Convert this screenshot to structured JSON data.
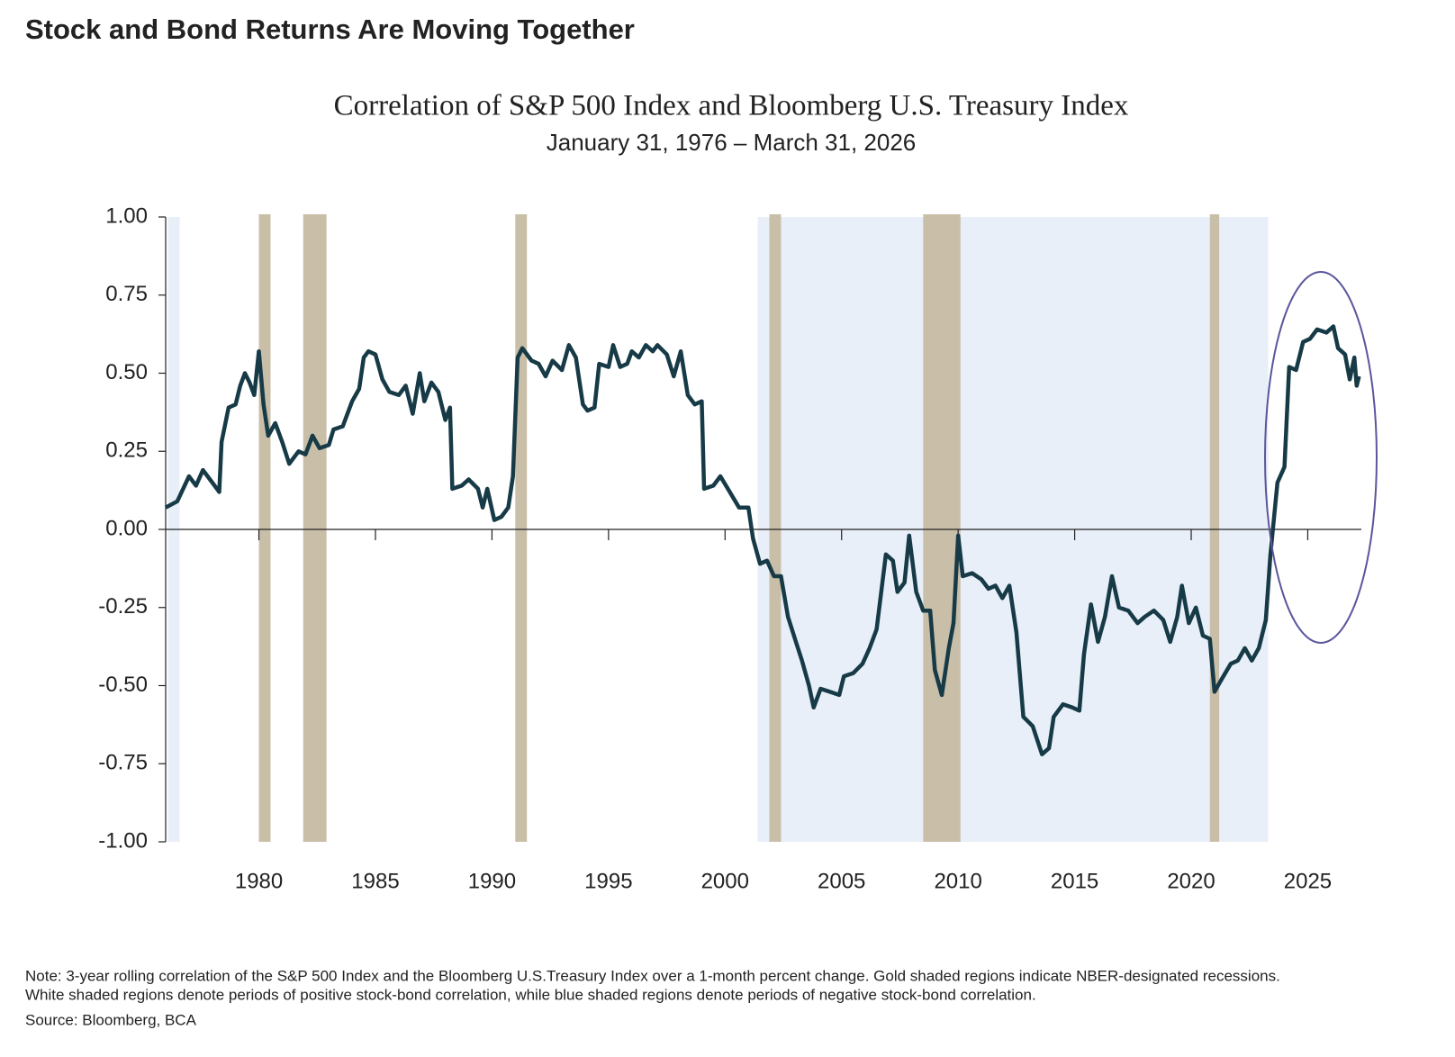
{
  "chart_data": {
    "type": "line",
    "title": "Stock and Bond Returns Are Moving Together",
    "chart_title": "Correlation of S&P 500 Index and Bloomberg U.S. Treasury Index",
    "subtitle": "January 31, 1976 – March 31, 2026",
    "note": [
      "Note: 3-year rolling  correlation of the S&P 500 Index and the Bloomberg U.S.Treasury Index over a 1-month percent change. Gold shaded regions indicate NBER-designated recessions.",
      "White shaded regions denote periods of positive stock-bond correlation, while blue shaded regions denote periods of negative stock-bond correlation."
    ],
    "source": "Source: Bloomberg, BCA",
    "xlim": [
      1976,
      2027.3
    ],
    "xticks": [
      1980,
      1985,
      1990,
      1995,
      2000,
      2005,
      2010,
      2015,
      2020,
      2025
    ],
    "ylim": [
      -1,
      1
    ],
    "yticks": [
      {
        "value": -1,
        "label": "-1.00"
      },
      -0.75,
      {
        "value": -0.5,
        "label": "-0.50"
      },
      -0.25,
      {
        "value": 0,
        "label": "0.00"
      },
      0.25,
      {
        "value": 0.5,
        "label": "0.50"
      },
      0.75,
      {
        "value": 1,
        "label": "1.00"
      }
    ],
    "color": "#173a47",
    "recession_color": "#c9bea8",
    "negative_color": "#e8eff8",
    "recessions": [
      [
        1980.0,
        1980.5
      ],
      [
        1981.9,
        1982.9
      ],
      [
        1991.0,
        1991.5
      ],
      [
        2001.9,
        2002.4
      ],
      [
        2008.5,
        2010.1
      ],
      [
        2020.8,
        2021.2
      ]
    ],
    "negative_periods": [
      [
        1976.1,
        1976.6
      ],
      [
        2001.4,
        2023.3
      ]
    ],
    "x": [
      1976.0,
      1976.5,
      1977.0,
      1977.3,
      1977.6,
      1978.0,
      1978.3,
      1978.4,
      1978.7,
      1979.0,
      1979.2,
      1979.4,
      1979.6,
      1979.8,
      1980.0,
      1980.2,
      1980.4,
      1980.7,
      1981.0,
      1981.3,
      1981.7,
      1982.0,
      1982.3,
      1982.6,
      1983.0,
      1983.2,
      1983.6,
      1984.0,
      1984.3,
      1984.5,
      1984.7,
      1985.0,
      1985.3,
      1985.6,
      1986.0,
      1986.3,
      1986.6,
      1986.9,
      1987.1,
      1987.4,
      1987.7,
      1988.0,
      1988.2,
      1988.3,
      1988.7,
      1989.0,
      1989.4,
      1989.6,
      1989.8,
      1990.1,
      1990.4,
      1990.7,
      1990.9,
      1991.1,
      1991.3,
      1991.7,
      1992.0,
      1992.3,
      1992.6,
      1993.0,
      1993.3,
      1993.6,
      1993.9,
      1994.1,
      1994.4,
      1994.6,
      1995.0,
      1995.2,
      1995.5,
      1995.8,
      1996.0,
      1996.3,
      1996.6,
      1996.9,
      1997.1,
      1997.5,
      1997.8,
      1998.1,
      1998.4,
      1998.7,
      1999.0,
      1999.1,
      1999.5,
      1999.8,
      2000.2,
      2000.6,
      2001.0,
      2001.2,
      2001.5,
      2001.8,
      2002.1,
      2002.4,
      2002.7,
      2003.0,
      2003.3,
      2003.6,
      2003.8,
      2004.1,
      2004.5,
      2004.9,
      2005.1,
      2005.5,
      2005.9,
      2006.2,
      2006.5,
      2006.9,
      2007.2,
      2007.4,
      2007.7,
      2007.9,
      2008.2,
      2008.5,
      2008.8,
      2009.0,
      2009.3,
      2009.6,
      2009.8,
      2010.0,
      2010.2,
      2010.6,
      2011.0,
      2011.3,
      2011.6,
      2011.9,
      2012.2,
      2012.5,
      2012.8,
      2013.2,
      2013.6,
      2013.9,
      2014.1,
      2014.5,
      2014.9,
      2015.2,
      2015.4,
      2015.7,
      2016.0,
      2016.3,
      2016.6,
      2016.9,
      2017.3,
      2017.7,
      2018.0,
      2018.4,
      2018.8,
      2019.1,
      2019.4,
      2019.6,
      2019.9,
      2020.2,
      2020.5,
      2020.8,
      2021.0,
      2021.3,
      2021.7,
      2022.0,
      2022.3,
      2022.6,
      2022.9,
      2023.2,
      2023.4,
      2023.7,
      2024.0,
      2024.2,
      2024.5,
      2024.8,
      2025.1,
      2025.4,
      2025.8,
      2026.1,
      2026.3,
      2026.6,
      2026.8,
      2027.0,
      2027.1,
      2027.2
    ],
    "values": [
      0.07,
      0.09,
      0.17,
      0.14,
      0.19,
      0.15,
      0.12,
      0.28,
      0.39,
      0.4,
      0.46,
      0.5,
      0.47,
      0.43,
      0.57,
      0.4,
      0.3,
      0.34,
      0.28,
      0.21,
      0.25,
      0.24,
      0.3,
      0.26,
      0.27,
      0.32,
      0.33,
      0.41,
      0.45,
      0.55,
      0.57,
      0.56,
      0.48,
      0.44,
      0.43,
      0.46,
      0.37,
      0.5,
      0.41,
      0.47,
      0.44,
      0.35,
      0.39,
      0.13,
      0.14,
      0.16,
      0.13,
      0.07,
      0.13,
      0.03,
      0.04,
      0.07,
      0.17,
      0.55,
      0.58,
      0.54,
      0.53,
      0.49,
      0.54,
      0.51,
      0.59,
      0.55,
      0.4,
      0.38,
      0.39,
      0.53,
      0.52,
      0.59,
      0.52,
      0.53,
      0.57,
      0.55,
      0.59,
      0.57,
      0.59,
      0.56,
      0.49,
      0.57,
      0.43,
      0.4,
      0.41,
      0.13,
      0.14,
      0.17,
      0.12,
      0.07,
      0.07,
      -0.03,
      -0.11,
      -0.1,
      -0.15,
      -0.15,
      -0.28,
      -0.35,
      -0.42,
      -0.5,
      -0.57,
      -0.51,
      -0.52,
      -0.53,
      -0.47,
      -0.46,
      -0.43,
      -0.38,
      -0.32,
      -0.08,
      -0.1,
      -0.2,
      -0.17,
      -0.02,
      -0.2,
      -0.26,
      -0.26,
      -0.45,
      -0.53,
      -0.38,
      -0.3,
      -0.02,
      -0.15,
      -0.14,
      -0.16,
      -0.19,
      -0.18,
      -0.22,
      -0.18,
      -0.33,
      -0.6,
      -0.63,
      -0.72,
      -0.7,
      -0.6,
      -0.56,
      -0.57,
      -0.58,
      -0.4,
      -0.24,
      -0.36,
      -0.28,
      -0.15,
      -0.25,
      -0.26,
      -0.3,
      -0.28,
      -0.26,
      -0.29,
      -0.36,
      -0.28,
      -0.18,
      -0.3,
      -0.25,
      -0.34,
      -0.35,
      -0.52,
      -0.48,
      -0.43,
      -0.42,
      -0.38,
      -0.42,
      -0.38,
      -0.29,
      -0.08,
      0.15,
      0.2,
      0.52,
      0.51,
      0.6,
      0.61,
      0.64,
      0.63,
      0.65,
      0.58,
      0.56,
      0.48,
      0.55,
      0.46,
      0.49
    ]
  }
}
